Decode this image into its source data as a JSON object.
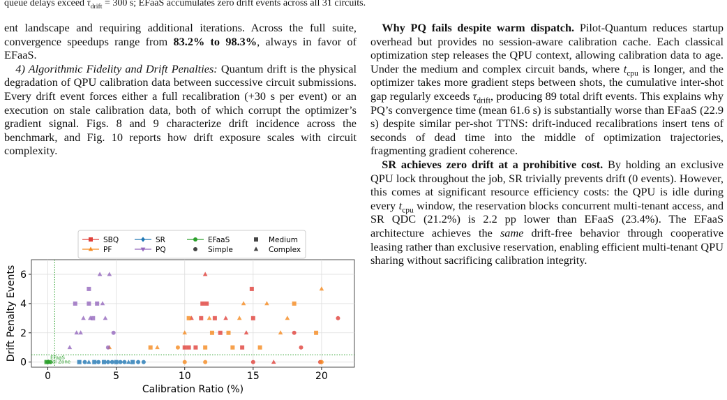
{
  "header_line": {
    "runs": [
      {
        "text": "queue delays exceed "
      },
      {
        "text": "τ",
        "style": "italic"
      },
      {
        "text": "drift",
        "style": "sub"
      },
      {
        "text": " = 300 s; EFaaS accumulates zero drift events across all 31 circuits."
      }
    ]
  },
  "left_column": {
    "paragraphs": [
      {
        "indent": false,
        "runs": [
          {
            "text": "ent landscape and requiring additional iterations. Across the full suite, convergence speedups range from "
          },
          {
            "text": "83.2% to 98.3%",
            "style": "bold"
          },
          {
            "text": ", always in favor of EFaaS."
          }
        ]
      },
      {
        "indent": true,
        "runs": [
          {
            "text": "4) Algorithmic Fidelity and Drift Penalties:",
            "style": "italic"
          },
          {
            "text": " Quantum drift is the physical degradation of QPU calibration data between successive circuit submissions. Every drift event forces either a full recalibration (+30 s per event) or an execution on stale calibration data, both of which corrupt the optimizer’s gradient signal. Figs. 8 and 9 characterize drift incidence across the benchmark, and Fig. 10 reports how drift exposure scales with circuit complexity."
          }
        ]
      }
    ]
  },
  "right_column": {
    "paragraphs": [
      {
        "indent": true,
        "runs": [
          {
            "text": "Why PQ fails despite warm dispatch.",
            "style": "bold"
          },
          {
            "text": " Pilot-Quantum reduces startup overhead but provides no session-aware calibration cache. Each classical optimization step releases the QPU context, allowing calibration data to age. Under the medium and complex circuit bands, where "
          },
          {
            "text": "t",
            "style": "italic"
          },
          {
            "text": "cpu",
            "style": "sub"
          },
          {
            "text": " is longer, and the optimizer takes more gradient steps between shots, the cumulative inter-shot gap regularly exceeds "
          },
          {
            "text": "τ",
            "style": "italic"
          },
          {
            "text": "drift",
            "style": "sub"
          },
          {
            "text": ", producing 89 total drift events. This explains why PQ’s convergence time (mean 61.6 s) is substantially worse than EFaaS (22.9 s) despite similar per-shot TTNS: drift-induced recalibrations insert tens of seconds of dead time into the middle of optimization trajectories, fragmenting gradient coherence."
          }
        ]
      },
      {
        "indent": true,
        "runs": [
          {
            "text": "SR achieves zero drift at a prohibitive cost.",
            "style": "bold"
          },
          {
            "text": " By holding an exclusive QPU lock throughout the job, SR trivially prevents drift (0 events). However, this comes at significant resource efficiency costs: the QPU is idle during every "
          },
          {
            "text": "t",
            "style": "italic"
          },
          {
            "text": "cpu",
            "style": "sub"
          },
          {
            "text": " window, the reservation blocks concurrent multi-tenant access, and SR QDC (21.2%) is 2.2 pp lower than EFaaS (23.4%). The EFaaS architecture achieves the "
          },
          {
            "text": "same",
            "style": "italic"
          },
          {
            "text": " drift-free behavior through cooperative leasing rather than exclusive reservation, enabling efficient multi-tenant QPU sharing without sacrificing calibration integrity."
          }
        ]
      }
    ]
  },
  "chart_data": {
    "type": "scatter",
    "xlabel": "Calibration Ratio (%)",
    "ylabel": "Drift Penalty Events",
    "xlim": [
      -1.2,
      22.4
    ],
    "ylim": [
      -0.35,
      7
    ],
    "xticks": [
      0,
      5,
      10,
      15,
      20
    ],
    "yticks": [
      0,
      2,
      4,
      6
    ],
    "grid": true,
    "ideal_zone": {
      "x": 0.5,
      "y": 0.5,
      "label_lines": [
        "EFaaS",
        "Ideal Zone"
      ],
      "color": "#2ca02c"
    },
    "complexities": [
      {
        "name": "Simple",
        "marker": "circle"
      },
      {
        "name": "Medium",
        "marker": "square"
      },
      {
        "name": "Complex",
        "marker": "triangle"
      }
    ],
    "series": [
      {
        "name": "SBQ",
        "color": "#e0403a",
        "marker": "square",
        "x": [
          11.5,
          14.9,
          11.3,
          11.6,
          10.5,
          11.2,
          12.2,
          13,
          15,
          21.2,
          10,
          10.3,
          10.8,
          14.2,
          18.5,
          18,
          14.5,
          12.6,
          15,
          19.9,
          16.5
        ],
        "y": [
          6,
          5,
          4,
          4,
          3,
          3,
          3,
          3,
          3,
          3,
          1,
          1,
          1,
          1,
          1,
          2,
          2,
          2,
          0,
          0,
          0
        ],
        "complexity": [
          "Complex",
          "Medium",
          "Medium",
          "Medium",
          "Complex",
          "Medium",
          "Medium",
          "Complex",
          "Medium",
          "Simple",
          "Medium",
          "Medium",
          "Medium",
          "Medium",
          "Simple",
          "Simple",
          "Complex",
          "Medium",
          "Simple",
          "Simple",
          "Complex"
        ]
      },
      {
        "name": "PF",
        "color": "#f58a1f",
        "marker": "triangle",
        "x": [
          20,
          16,
          14.3,
          18,
          10.3,
          11.8,
          14,
          17.5,
          10,
          12,
          13.2,
          17,
          19.6,
          4.5,
          7.5,
          8,
          9.5,
          11.5,
          13.5,
          15.5,
          20,
          10,
          11.5
        ],
        "y": [
          5,
          4,
          4,
          4,
          3,
          3,
          3,
          3,
          2,
          2,
          2,
          2,
          2,
          1,
          1,
          1,
          1,
          1,
          1,
          1,
          0,
          0,
          0
        ],
        "complexity": [
          "Complex",
          "Complex",
          "Complex",
          "Medium",
          "Medium",
          "Complex",
          "Complex",
          "Complex",
          "Complex",
          "Medium",
          "Medium",
          "Complex",
          "Medium",
          "Complex",
          "Medium",
          "Complex",
          "Simple",
          "Medium",
          "Medium",
          "Medium",
          "Simple",
          "Simple",
          "Simple"
        ]
      },
      {
        "name": "SR",
        "color": "#1f77b4",
        "marker": "diamond",
        "x": [
          2.3,
          2.7,
          3,
          3.4,
          3.7,
          4.1,
          4.4,
          4.7,
          5,
          5.3,
          5.6,
          5.9,
          6.2,
          6.6,
          7
        ],
        "y": [
          0,
          0,
          0,
          0,
          0,
          0,
          0,
          0,
          0,
          0,
          0,
          0,
          0,
          0,
          0
        ],
        "complexity": [
          "Medium",
          "Simple",
          "Complex",
          "Medium",
          "Simple",
          "Medium",
          "Simple",
          "Simple",
          "Medium",
          "Simple",
          "Simple",
          "Complex",
          "Medium",
          "Simple",
          "Simple"
        ]
      },
      {
        "name": "PQ",
        "color": "#9467bd",
        "marker": "triangle-down",
        "x": [
          1.6,
          2.1,
          2.4,
          2.6,
          3.1,
          3.3,
          3,
          2,
          3.6,
          4,
          3.8,
          4.5,
          4.8,
          4.4,
          3,
          4.2
        ],
        "y": [
          1,
          2,
          2,
          3,
          3,
          3,
          5,
          4,
          4,
          4,
          6,
          6,
          2,
          1,
          4,
          3
        ],
        "complexity": [
          "Complex",
          "Complex",
          "Complex",
          "Complex",
          "Complex",
          "Medium",
          "Medium",
          "Medium",
          "Medium",
          "Complex",
          "Complex",
          "Complex",
          "Simple",
          "Simple",
          "Medium",
          "Complex"
        ]
      },
      {
        "name": "EFaaS",
        "color": "#2ca02c",
        "marker": "circle",
        "x": [
          0,
          -0.1,
          0.1,
          0.2
        ],
        "y": [
          0,
          0,
          0,
          0
        ],
        "complexity": [
          "Simple",
          "Medium",
          "Complex",
          "Simple"
        ]
      }
    ]
  }
}
